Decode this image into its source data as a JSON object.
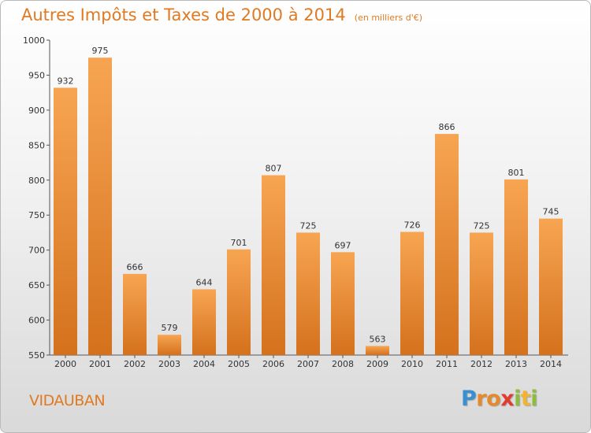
{
  "chart_data": {
    "type": "bar",
    "title": "Autres Impôts et Taxes de 2000 à 2014",
    "unit_note": "(en milliers d'€)",
    "categories": [
      "2000",
      "2001",
      "2002",
      "2003",
      "2004",
      "2005",
      "2006",
      "2007",
      "2008",
      "2009",
      "2010",
      "2011",
      "2012",
      "2013",
      "2014"
    ],
    "values": [
      932,
      975,
      666,
      579,
      644,
      701,
      807,
      725,
      697,
      563,
      726,
      866,
      725,
      801,
      745
    ],
    "ylim": [
      550,
      1000
    ],
    "yticks": [
      550,
      600,
      650,
      700,
      750,
      800,
      850,
      900,
      950,
      1000
    ],
    "grid": false,
    "colors": {
      "bar_light": "#f7a552",
      "bar_dark": "#d4711d",
      "title": "#e07a22"
    }
  },
  "footer": {
    "place": "VIDAUBAN",
    "logo_letters": [
      {
        "ch": "P",
        "color": "#3a8fd1"
      },
      {
        "ch": "r",
        "color": "#e5892b"
      },
      {
        "ch": "o",
        "color": "#e5892b"
      },
      {
        "ch": "x",
        "color": "#e23b2f"
      },
      {
        "ch": "i",
        "color": "#8cbd3f"
      },
      {
        "ch": "t",
        "color": "#f2b233"
      },
      {
        "ch": "i",
        "color": "#8cbd3f"
      }
    ]
  }
}
